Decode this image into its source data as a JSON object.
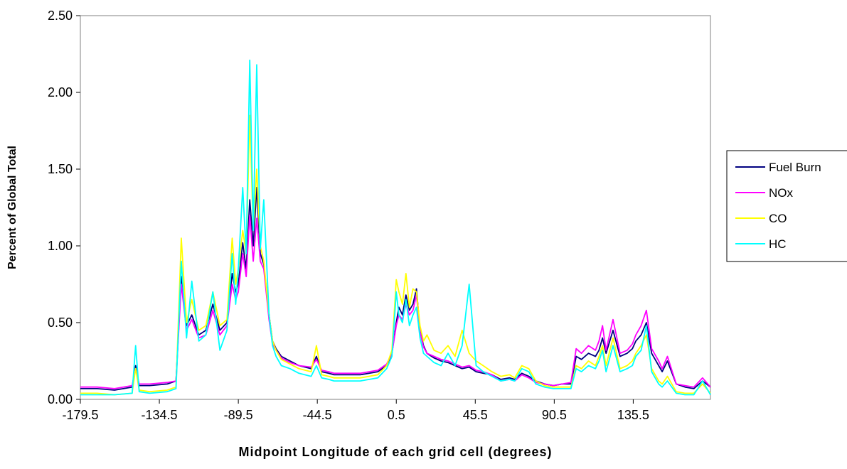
{
  "chart_data": {
    "type": "line",
    "title": "",
    "xlabel": "Midpoint Longitude of each grid cell (degrees)",
    "ylabel": "Percent of Global Total",
    "xlim": [
      -179.5,
      179.5
    ],
    "ylim": [
      0,
      2.5
    ],
    "x_ticks": [
      "-179.5",
      "-134.5",
      "-89.5",
      "-44.5",
      "0.5",
      "45.5",
      "90.5",
      "135.5"
    ],
    "y_ticks": [
      "0.00",
      "0.50",
      "1.00",
      "1.50",
      "2.00",
      "2.50"
    ],
    "grid": false,
    "legend_position": "right",
    "x": [
      -179.5,
      -170,
      -160,
      -150,
      -148,
      -146,
      -140,
      -130,
      -125,
      -122,
      -119,
      -116,
      -112,
      -108,
      -104,
      -100,
      -96,
      -93,
      -91,
      -89.5,
      -87,
      -85,
      -83,
      -81,
      -79,
      -77,
      -75,
      -72,
      -70,
      -68,
      -65,
      -60,
      -55,
      -48,
      -45,
      -42,
      -38,
      -35,
      -30,
      -20,
      -10,
      -5,
      -2,
      0.5,
      2,
      4,
      6,
      8,
      10,
      12,
      14,
      16,
      18,
      22,
      26,
      30,
      34,
      38,
      42,
      46,
      50,
      55,
      60,
      65,
      68,
      72,
      76,
      80,
      85,
      90,
      95,
      100,
      103,
      106,
      110,
      114,
      116,
      118,
      120,
      124,
      128,
      132,
      135,
      137,
      140,
      143,
      146,
      150,
      152,
      155,
      160,
      165,
      170,
      175,
      179.5
    ],
    "series": [
      {
        "name": "Fuel Burn",
        "color": "#000080",
        "values": [
          0.07,
          0.07,
          0.06,
          0.08,
          0.22,
          0.09,
          0.09,
          0.1,
          0.12,
          0.8,
          0.48,
          0.55,
          0.42,
          0.45,
          0.62,
          0.45,
          0.5,
          0.82,
          0.7,
          0.75,
          1.02,
          0.85,
          1.3,
          1.0,
          1.38,
          0.95,
          0.88,
          0.55,
          0.38,
          0.33,
          0.28,
          0.25,
          0.22,
          0.2,
          0.28,
          0.18,
          0.17,
          0.16,
          0.16,
          0.16,
          0.18,
          0.22,
          0.3,
          0.5,
          0.6,
          0.55,
          0.68,
          0.58,
          0.62,
          0.72,
          0.45,
          0.35,
          0.3,
          0.27,
          0.25,
          0.24,
          0.22,
          0.2,
          0.21,
          0.18,
          0.17,
          0.16,
          0.13,
          0.14,
          0.13,
          0.17,
          0.15,
          0.12,
          0.1,
          0.09,
          0.1,
          0.1,
          0.28,
          0.26,
          0.3,
          0.28,
          0.32,
          0.4,
          0.3,
          0.45,
          0.28,
          0.3,
          0.33,
          0.38,
          0.42,
          0.5,
          0.3,
          0.22,
          0.18,
          0.25,
          0.1,
          0.08,
          0.07,
          0.12,
          0.08
        ]
      },
      {
        "name": "NOx",
        "color": "#ff00ff",
        "values": [
          0.08,
          0.08,
          0.07,
          0.09,
          0.2,
          0.1,
          0.1,
          0.11,
          0.12,
          0.75,
          0.45,
          0.52,
          0.4,
          0.42,
          0.58,
          0.42,
          0.48,
          0.75,
          0.65,
          0.7,
          0.95,
          0.8,
          1.2,
          0.9,
          1.18,
          0.9,
          0.85,
          0.52,
          0.36,
          0.32,
          0.27,
          0.24,
          0.22,
          0.21,
          0.26,
          0.19,
          0.18,
          0.17,
          0.17,
          0.17,
          0.19,
          0.23,
          0.3,
          0.48,
          0.55,
          0.52,
          0.62,
          0.55,
          0.58,
          0.68,
          0.44,
          0.34,
          0.3,
          0.28,
          0.26,
          0.25,
          0.23,
          0.21,
          0.22,
          0.19,
          0.18,
          0.16,
          0.12,
          0.13,
          0.12,
          0.16,
          0.14,
          0.11,
          0.1,
          0.09,
          0.1,
          0.11,
          0.33,
          0.3,
          0.35,
          0.32,
          0.38,
          0.48,
          0.32,
          0.52,
          0.3,
          0.32,
          0.36,
          0.42,
          0.48,
          0.58,
          0.33,
          0.25,
          0.2,
          0.28,
          0.1,
          0.09,
          0.08,
          0.14,
          0.08
        ]
      },
      {
        "name": "CO",
        "color": "#ffff00",
        "values": [
          0.04,
          0.04,
          0.03,
          0.04,
          0.2,
          0.06,
          0.05,
          0.06,
          0.08,
          1.05,
          0.5,
          0.65,
          0.45,
          0.48,
          0.7,
          0.48,
          0.52,
          1.05,
          0.75,
          0.85,
          1.1,
          0.95,
          1.85,
          1.1,
          1.5,
          1.0,
          0.9,
          0.55,
          0.38,
          0.32,
          0.26,
          0.23,
          0.2,
          0.18,
          0.35,
          0.16,
          0.15,
          0.14,
          0.14,
          0.14,
          0.16,
          0.22,
          0.32,
          0.78,
          0.7,
          0.62,
          0.82,
          0.6,
          0.72,
          0.7,
          0.48,
          0.38,
          0.42,
          0.32,
          0.3,
          0.35,
          0.28,
          0.45,
          0.3,
          0.25,
          0.22,
          0.18,
          0.15,
          0.16,
          0.14,
          0.22,
          0.2,
          0.12,
          0.09,
          0.08,
          0.08,
          0.08,
          0.22,
          0.2,
          0.25,
          0.22,
          0.28,
          0.35,
          0.22,
          0.4,
          0.2,
          0.22,
          0.25,
          0.3,
          0.35,
          0.42,
          0.2,
          0.12,
          0.1,
          0.15,
          0.05,
          0.04,
          0.04,
          0.1,
          0.04
        ]
      },
      {
        "name": "HC",
        "color": "#00ffff",
        "values": [
          0.03,
          0.03,
          0.03,
          0.04,
          0.35,
          0.05,
          0.04,
          0.05,
          0.07,
          0.9,
          0.4,
          0.77,
          0.38,
          0.42,
          0.7,
          0.32,
          0.45,
          0.95,
          0.62,
          0.85,
          1.38,
          0.95,
          2.21,
          1.1,
          2.18,
          0.98,
          1.3,
          0.55,
          0.35,
          0.28,
          0.22,
          0.2,
          0.17,
          0.15,
          0.22,
          0.14,
          0.13,
          0.12,
          0.12,
          0.12,
          0.14,
          0.2,
          0.28,
          0.7,
          0.55,
          0.5,
          0.65,
          0.48,
          0.55,
          0.6,
          0.4,
          0.3,
          0.28,
          0.24,
          0.22,
          0.3,
          0.22,
          0.35,
          0.75,
          0.22,
          0.18,
          0.15,
          0.12,
          0.13,
          0.12,
          0.2,
          0.18,
          0.1,
          0.08,
          0.07,
          0.07,
          0.07,
          0.2,
          0.18,
          0.22,
          0.2,
          0.25,
          0.32,
          0.18,
          0.35,
          0.18,
          0.2,
          0.22,
          0.28,
          0.32,
          0.48,
          0.18,
          0.1,
          0.08,
          0.12,
          0.04,
          0.03,
          0.03,
          0.12,
          0.03
        ]
      }
    ]
  }
}
